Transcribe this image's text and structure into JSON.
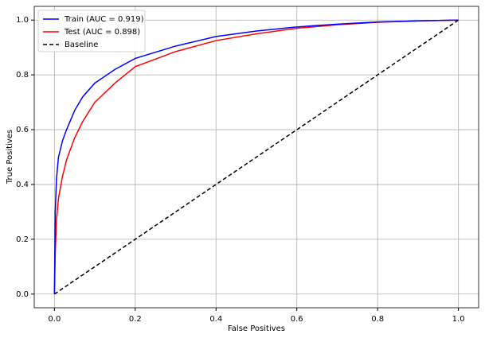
{
  "chart_data": {
    "type": "line",
    "xlabel": "False Positives",
    "ylabel": "True Positives",
    "x": [
      0,
      0.002,
      0.005,
      0.01,
      0.02,
      0.03,
      0.05,
      0.07,
      0.1,
      0.15,
      0.2,
      0.3,
      0.4,
      0.5,
      0.6,
      0.7,
      0.8,
      0.9,
      1
    ],
    "series": [
      {
        "name": "Train (AUC = 0.919)",
        "color": "#0000ff",
        "linestyle": "solid",
        "values": [
          0,
          0.3,
          0.42,
          0.5,
          0.56,
          0.6,
          0.67,
          0.72,
          0.77,
          0.82,
          0.86,
          0.905,
          0.94,
          0.96,
          0.975,
          0.985,
          0.993,
          0.997,
          1
        ]
      },
      {
        "name": "Test (AUC = 0.898)",
        "color": "#ff0000",
        "linestyle": "solid",
        "values": [
          0,
          0.15,
          0.27,
          0.35,
          0.43,
          0.49,
          0.57,
          0.63,
          0.7,
          0.77,
          0.83,
          0.885,
          0.925,
          0.95,
          0.97,
          0.983,
          0.992,
          0.997,
          1
        ]
      },
      {
        "name": "Baseline",
        "color": "#000000",
        "linestyle": "dashed",
        "values": [
          0,
          0.002,
          0.005,
          0.01,
          0.02,
          0.03,
          0.05,
          0.07,
          0.1,
          0.15,
          0.2,
          0.3,
          0.4,
          0.5,
          0.6,
          0.7,
          0.8,
          0.9,
          1
        ]
      }
    ],
    "xlim": [
      -0.05,
      1.05
    ],
    "ylim": [
      -0.05,
      1.05
    ],
    "xticks": [
      {
        "value": 0,
        "label": "0.0"
      },
      0.2,
      0.4,
      0.6,
      0.8,
      {
        "value": 1,
        "label": "1.0"
      }
    ],
    "yticks": [
      {
        "value": 0,
        "label": "0.0"
      },
      0.2,
      0.4,
      0.6,
      0.8,
      {
        "value": 1,
        "label": "1.0"
      }
    ],
    "grid": true,
    "legend": "upper-left"
  }
}
